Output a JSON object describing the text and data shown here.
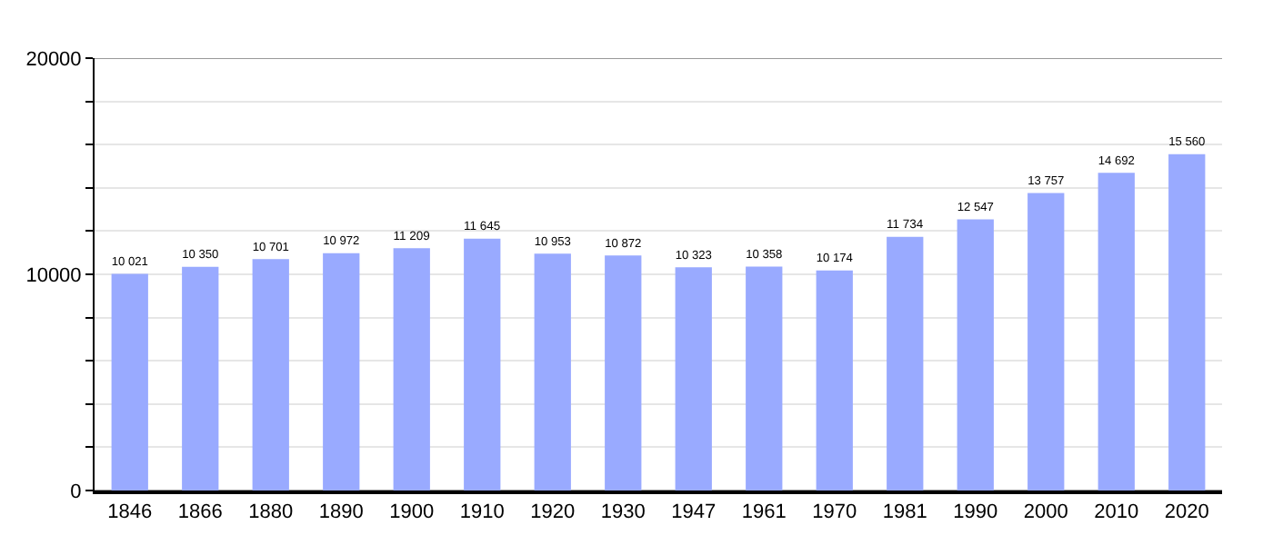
{
  "chart_data": {
    "type": "bar",
    "categories": [
      "1846",
      "1866",
      "1880",
      "1890",
      "1900",
      "1910",
      "1920",
      "1930",
      "1947",
      "1961",
      "1970",
      "1981",
      "1990",
      "2000",
      "2010",
      "2020"
    ],
    "values": [
      10021,
      10350,
      10701,
      10972,
      11209,
      11645,
      10953,
      10872,
      10323,
      10358,
      10174,
      11734,
      12547,
      13757,
      14692,
      15560
    ],
    "value_labels": [
      "10 021",
      "10 350",
      "10 701",
      "10 972",
      "11 209",
      "11 645",
      "10 953",
      "10 872",
      "10 323",
      "10 358",
      "10 174",
      "11 734",
      "12 547",
      "13 757",
      "14 692",
      "15 560"
    ],
    "color": "#99aaff",
    "ylim": [
      0,
      20000
    ],
    "yticks": [
      0,
      {
        "value": 2000,
        "label": null
      },
      {
        "value": 4000,
        "label": null
      },
      {
        "value": 6000,
        "label": null
      },
      {
        "value": 8000,
        "label": null
      },
      10000,
      {
        "value": 12000,
        "label": null
      },
      {
        "value": 14000,
        "label": null
      },
      {
        "value": 16000,
        "label": null
      },
      {
        "value": 18000,
        "label": null
      },
      20000
    ],
    "grid": true
  }
}
